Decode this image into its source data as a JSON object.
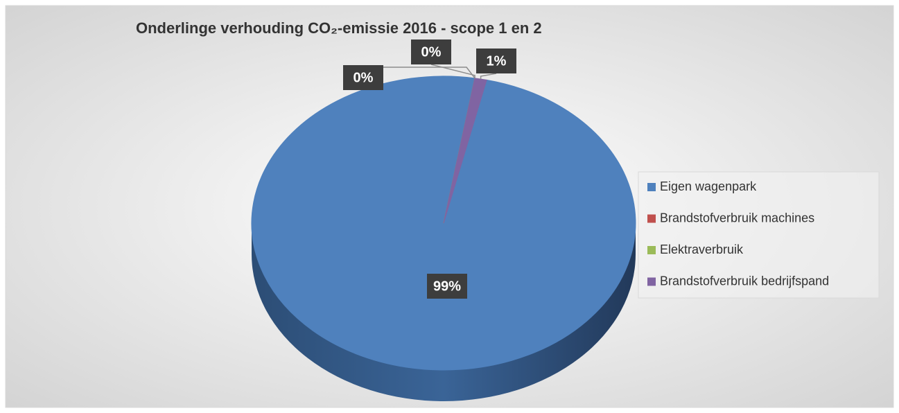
{
  "chart_data": {
    "type": "pie",
    "title": "Onderlinge verhouding CO₂-emissie 2016 - scope 1 en 2",
    "categories": [
      "Eigen wagenpark",
      "Brandstofverbruik machines",
      "Elektraverbruik",
      "Brandstofverbruik bedrijfspand"
    ],
    "values": [
      99,
      0,
      0,
      1
    ],
    "value_labels": [
      "99%",
      "0%",
      "0%",
      "1%"
    ],
    "colors": [
      "#4f81bd",
      "#c0504d",
      "#9bbb59",
      "#8064a2"
    ],
    "legend": "right"
  }
}
